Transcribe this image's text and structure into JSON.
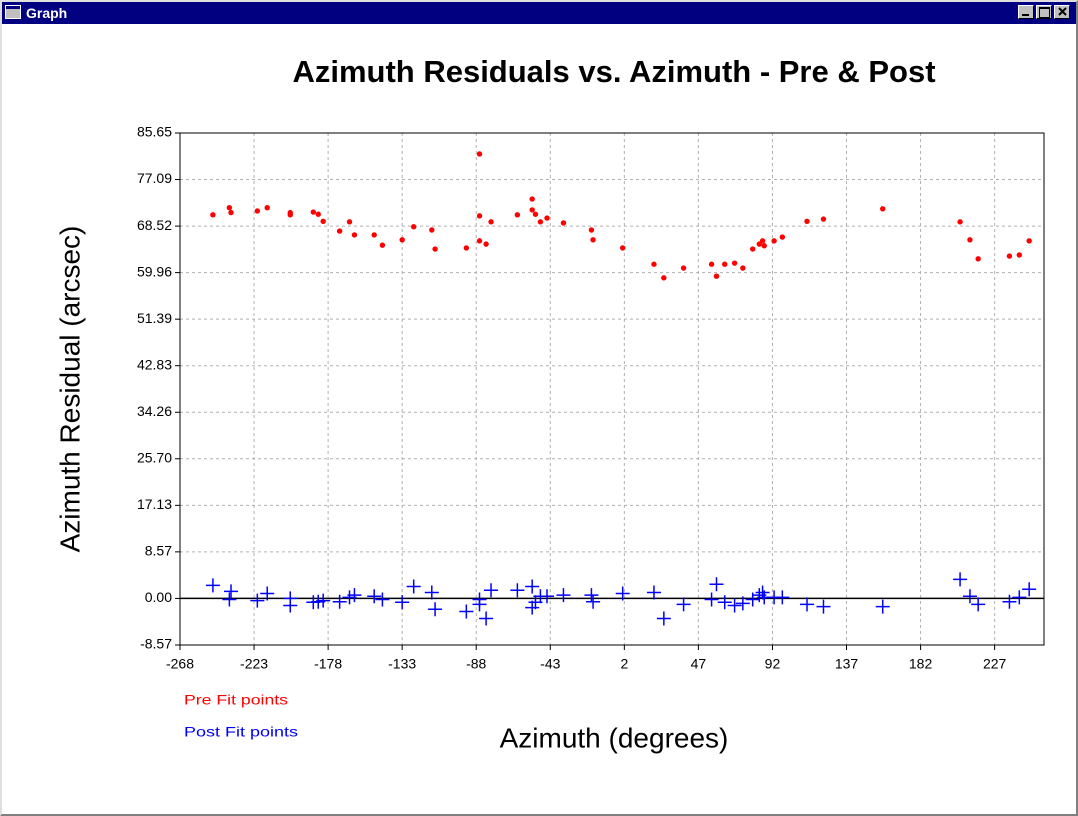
{
  "window": {
    "title": "Graph"
  },
  "chart_data": {
    "type": "scatter",
    "title": "Azimuth Residuals vs. Azimuth - Pre & Post",
    "x_label": "Azimuth (degrees)",
    "y_label": "Azimuth Residual (arcsec)",
    "x": [
      -248,
      -238,
      -237,
      -221,
      -215,
      -201,
      -201,
      -187,
      -184,
      -181,
      -171,
      -165,
      -162,
      -150,
      -145,
      -133,
      -126,
      -115,
      -113,
      -94,
      -86,
      -86,
      -82,
      -79,
      -63,
      -54,
      -54,
      -52,
      -49,
      -45,
      -35,
      -18,
      -17,
      1,
      20,
      26,
      38,
      55,
      58,
      63,
      69,
      74,
      80,
      84,
      86,
      87,
      93,
      98,
      113,
      123,
      159,
      206,
      212,
      217,
      236,
      242,
      248
    ],
    "series": [
      {
        "name": "Pre Fit points",
        "color": "#ff0000",
        "marker": "circle",
        "values": [
          70.6,
          71.9,
          71.0,
          71.3,
          71.9,
          71.0,
          70.6,
          71.1,
          70.7,
          69.4,
          67.6,
          69.3,
          66.9,
          66.9,
          65.0,
          66.0,
          68.4,
          67.8,
          64.3,
          64.5,
          70.4,
          65.8,
          65.2,
          69.3,
          70.6,
          73.5,
          71.5,
          70.7,
          69.3,
          70.0,
          69.1,
          67.8,
          66.0,
          64.5,
          61.5,
          59.0,
          60.8,
          61.5,
          59.3,
          61.5,
          61.7,
          60.8,
          64.3,
          65.2,
          65.8,
          64.9,
          65.8,
          66.5,
          69.4,
          69.8,
          71.7,
          69.3,
          66.0,
          62.5,
          63.0,
          63.2,
          65.8
        ]
      },
      {
        "name": "Post Fit points",
        "color": "#0000ff",
        "marker": "plus",
        "values": [
          2.4,
          -0.2,
          1.3,
          -0.4,
          0.9,
          0.0,
          -1.3,
          -0.7,
          -0.6,
          -0.4,
          -0.6,
          0.2,
          0.6,
          0.4,
          -0.2,
          -0.7,
          2.2,
          1.1,
          -2.0,
          -2.4,
          -0.2,
          -1.1,
          -3.7,
          1.5,
          1.5,
          2.2,
          -1.7,
          -0.7,
          0.4,
          0.4,
          0.6,
          0.6,
          -0.6,
          0.9,
          1.1,
          -3.7,
          -1.1,
          -0.2,
          2.6,
          -0.7,
          -1.3,
          -0.9,
          -0.2,
          0.6,
          1.1,
          0.2,
          0.2,
          0.2,
          -1.1,
          -1.5,
          -1.5,
          3.5,
          0.4,
          -1.1,
          -0.6,
          0.2,
          1.7
        ]
      }
    ],
    "extra_points": {
      "x": [
        -86
      ],
      "series_index": 0,
      "values": [
        81.8
      ]
    },
    "xlim": [
      -268,
      257
    ],
    "xticks": [
      -268,
      -223,
      -178,
      -133,
      -88,
      -43,
      2,
      47,
      92,
      137,
      182,
      227
    ],
    "ylim": [
      -8.57,
      85.65
    ],
    "yticks": [
      85.65,
      77.09,
      68.52,
      59.96,
      51.39,
      42.83,
      34.26,
      {
        "value": 25.7,
        "label": "25.70"
      },
      17.13,
      8.57,
      {
        "value": 0,
        "label": "0.00"
      },
      -8.57
    ],
    "grid": true,
    "zero_line": true,
    "legend": "bottom-left"
  }
}
